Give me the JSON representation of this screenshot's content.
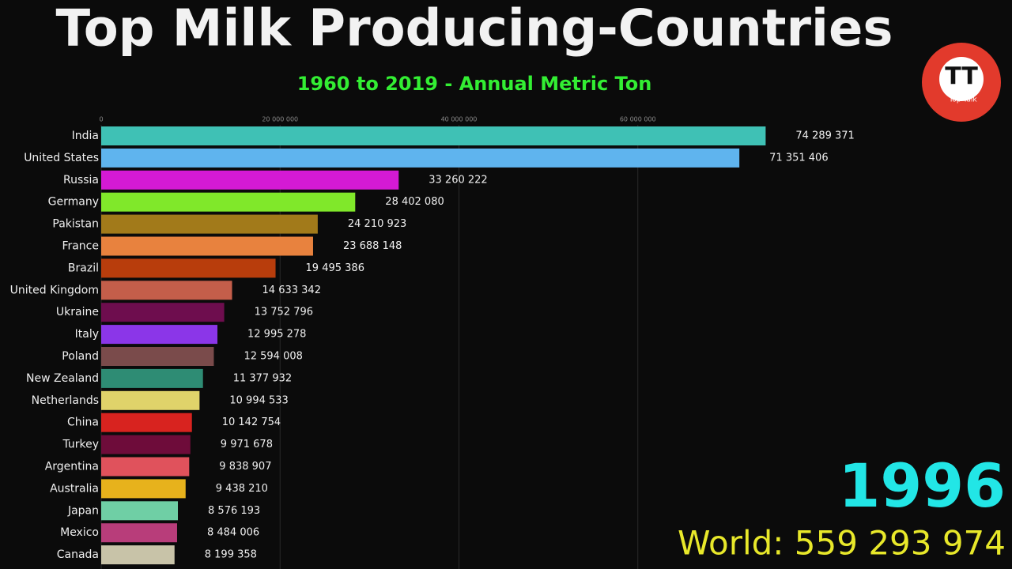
{
  "chart_data": {
    "type": "bar",
    "title": "Top Milk Producing-Countries",
    "subtitle": "1960 to 2019 - Annual Metric Ton",
    "categories": [
      "India",
      "United States",
      "Russia",
      "Germany",
      "Pakistan",
      "France",
      "Brazil",
      "United Kingdom",
      "Ukraine",
      "Italy",
      "Poland",
      "New Zealand",
      "Netherlands",
      "China",
      "Turkey",
      "Argentina",
      "Australia",
      "Japan",
      "Mexico",
      "Canada"
    ],
    "values": [
      74289371,
      71351406,
      33260222,
      28402080,
      24210923,
      23688148,
      19495386,
      14633342,
      13752796,
      12995278,
      12594008,
      11377932,
      10994533,
      10142754,
      9971678,
      9838907,
      9438210,
      8576193,
      8484006,
      8199358
    ],
    "value_labels": [
      "74 289 371",
      "71 351 406",
      "33 260 222",
      "28 402 080",
      "24 210 923",
      "23 688 148",
      "19 495 386",
      "14 633 342",
      "13 752 796",
      "12 995 278",
      "12 594 008",
      "11 377 932",
      "10 994 533",
      "10 142 754",
      "9 971 678",
      "9 838 907",
      "9 438 210",
      "8 576 193",
      "8 484 006",
      "8 199 358"
    ],
    "colors": [
      "#3fc1b5",
      "#5fb4ee",
      "#d41ad4",
      "#80e82a",
      "#a27a1a",
      "#e8823e",
      "#b83d0c",
      "#c45e4a",
      "#6e0d4e",
      "#8b36e8",
      "#7a4b4b",
      "#2e8c74",
      "#e0d36a",
      "#d8231f",
      "#6e0c3a",
      "#e0525c",
      "#e7b21c",
      "#6fcfa5",
      "#b83d7a",
      "#c8c3a8"
    ],
    "xlim": [
      0,
      80000000
    ],
    "xticks": [
      0,
      {
        "value": 20000000,
        "label": "20 000 000"
      },
      {
        "value": 40000000,
        "label": "40 000 000"
      },
      {
        "value": 60000000,
        "label": "60 000 000"
      }
    ],
    "grid": true,
    "year": "1996",
    "world_label": "World: 559 293 974"
  },
  "logo": {
    "text": "TT",
    "caption": "Top Talk"
  }
}
